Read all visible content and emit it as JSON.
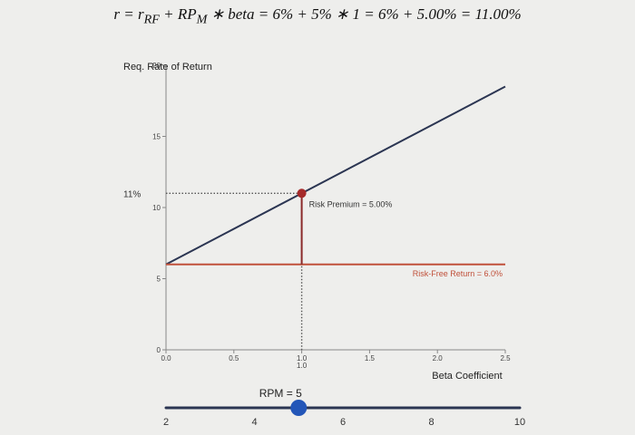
{
  "formula": {
    "r": "r",
    "eq1": " = ",
    "r_rf_base": "r",
    "r_rf_sub": "RF",
    "plus1": " + ",
    "rp_base": "RP",
    "rp_sub": "M",
    "rest": " ∗ beta = 6% + 5% ∗ 1 = 6% + 5.00% = 11.00%"
  },
  "chart_data": {
    "type": "line",
    "ylabel": "Req. Rate of Return",
    "xlabel": "Beta Coefficient",
    "xlim": [
      0,
      2.5
    ],
    "ylim": [
      0,
      20
    ],
    "xticks": [
      "0.0",
      "0.5",
      "1.0",
      "1.5",
      "2.0",
      "2.5"
    ],
    "xtick_values": [
      0,
      0.5,
      1.0,
      1.5,
      2.0,
      2.5
    ],
    "extra_xtick_label": "1.0",
    "yticks": [
      "0",
      "5",
      "10",
      "15",
      "20"
    ],
    "ytick_values": [
      0,
      5,
      10,
      15,
      20
    ],
    "series": [
      {
        "x": [
          0,
          2.5
        ],
        "y": [
          6,
          18.5
        ],
        "color": "#2b3552"
      },
      {
        "x": [
          0,
          2.5
        ],
        "y": [
          6,
          6
        ],
        "color": "#c0503a"
      }
    ],
    "highlight_point": {
      "x": 1.0,
      "y": 11.0,
      "color": "#a52a2a"
    },
    "y_marker_label": "11%",
    "annotations": {
      "risk_premium": "Risk Premium = 5.00%",
      "risk_free": "Risk-Free Return = 6.0%"
    },
    "colors": {
      "sml": "#2b3552",
      "risk_free": "#c0503a",
      "premium": "#8b2a2a",
      "point": "#a52a2a"
    }
  },
  "slider": {
    "label": "RPM = 5",
    "value": 5,
    "min": 2,
    "max": 10,
    "ticks": [
      "2",
      "4",
      "6",
      "8",
      "10"
    ],
    "tick_values": [
      2,
      4,
      6,
      8,
      10
    ],
    "track_color": "#2b3552",
    "handle_color": "#2356b8"
  }
}
